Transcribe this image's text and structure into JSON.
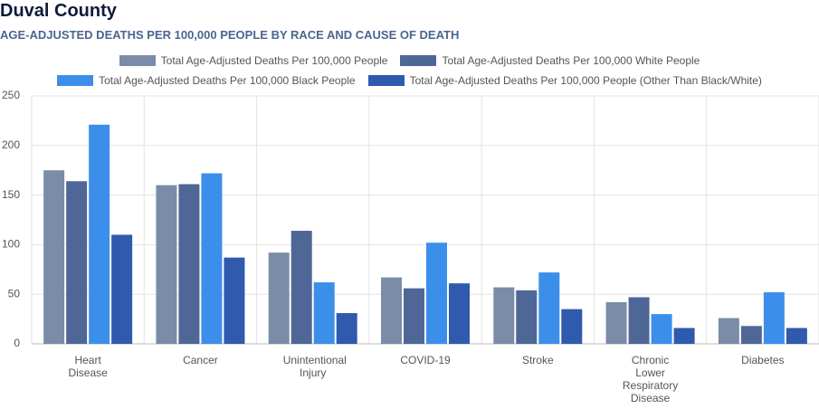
{
  "chart_data": {
    "type": "bar",
    "title": "Duval County",
    "subtitle": "AGE-ADJUSTED DEATHS PER 100,000 PEOPLE BY RACE AND CAUSE OF DEATH",
    "categories": [
      "Heart Disease",
      "Cancer",
      "Unintentional Injury",
      "COVID-19",
      "Stroke",
      "Chronic Lower Respiratory Disease",
      "Diabetes"
    ],
    "series": [
      {
        "name": "Total Age-Adjusted Deaths Per 100,000 People",
        "color": "#7a8ca8",
        "values": [
          175,
          160,
          92,
          67,
          57,
          42,
          26
        ]
      },
      {
        "name": "Total Age-Adjusted Deaths Per 100,000 White People",
        "color": "#4f6796",
        "values": [
          164,
          161,
          114,
          56,
          54,
          47,
          18
        ]
      },
      {
        "name": "Total Age-Adjusted Deaths Per 100,000 Black People",
        "color": "#3b8fea",
        "values": [
          221,
          172,
          62,
          102,
          72,
          30,
          52
        ]
      },
      {
        "name": "Total Age-Adjusted Deaths Per 100,000 People (Other Than Black/White)",
        "color": "#2f5aae",
        "values": [
          110,
          87,
          31,
          61,
          35,
          16,
          16
        ]
      }
    ],
    "ylim": [
      0,
      250
    ],
    "yticks": [
      0,
      50,
      100,
      150,
      200,
      250
    ],
    "grid": true
  }
}
